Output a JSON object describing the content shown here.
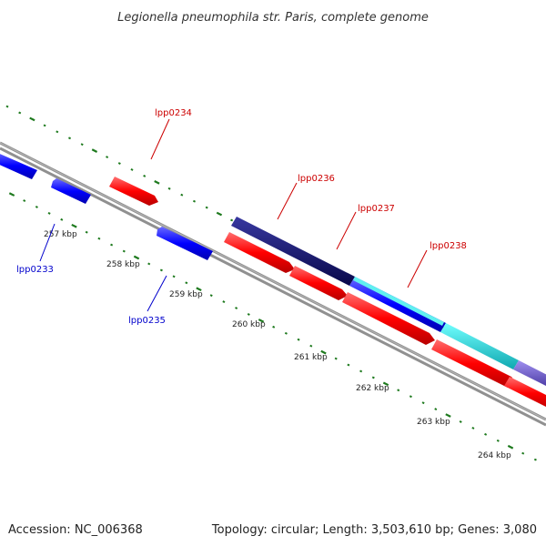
{
  "title": "Legionella pneumophila str. Paris, complete genome",
  "footer": {
    "accession": "Accession: NC_006368",
    "summary": "Topology: circular; Length: 3,503,610 bp; Genes: 3,080"
  },
  "colors": {
    "backbone": "#888888",
    "tick": "#1e7a1e",
    "forward_gene": "#ff0000",
    "reverse_gene": "#0000ff",
    "forward_label": "#cc0000",
    "reverse_label": "#0000cc",
    "band_navy": "#101070",
    "band_cyan": "#20d8d8",
    "band_purple": "#7060c8"
  },
  "scale": {
    "unit": "kbp",
    "labels": [
      "257 kbp",
      "258 kbp",
      "259 kbp",
      "260 kbp",
      "261 kbp",
      "262 kbp",
      "263 kbp",
      "264 kbp"
    ]
  },
  "genes": [
    {
      "name": "lpp0233",
      "strand": "reverse"
    },
    {
      "name": "lpp0234",
      "strand": "forward"
    },
    {
      "name": "lpp0235",
      "strand": "reverse"
    },
    {
      "name": "lpp0236",
      "strand": "forward"
    },
    {
      "name": "lpp0237",
      "strand": "forward"
    },
    {
      "name": "lpp0238",
      "strand": "forward"
    }
  ]
}
